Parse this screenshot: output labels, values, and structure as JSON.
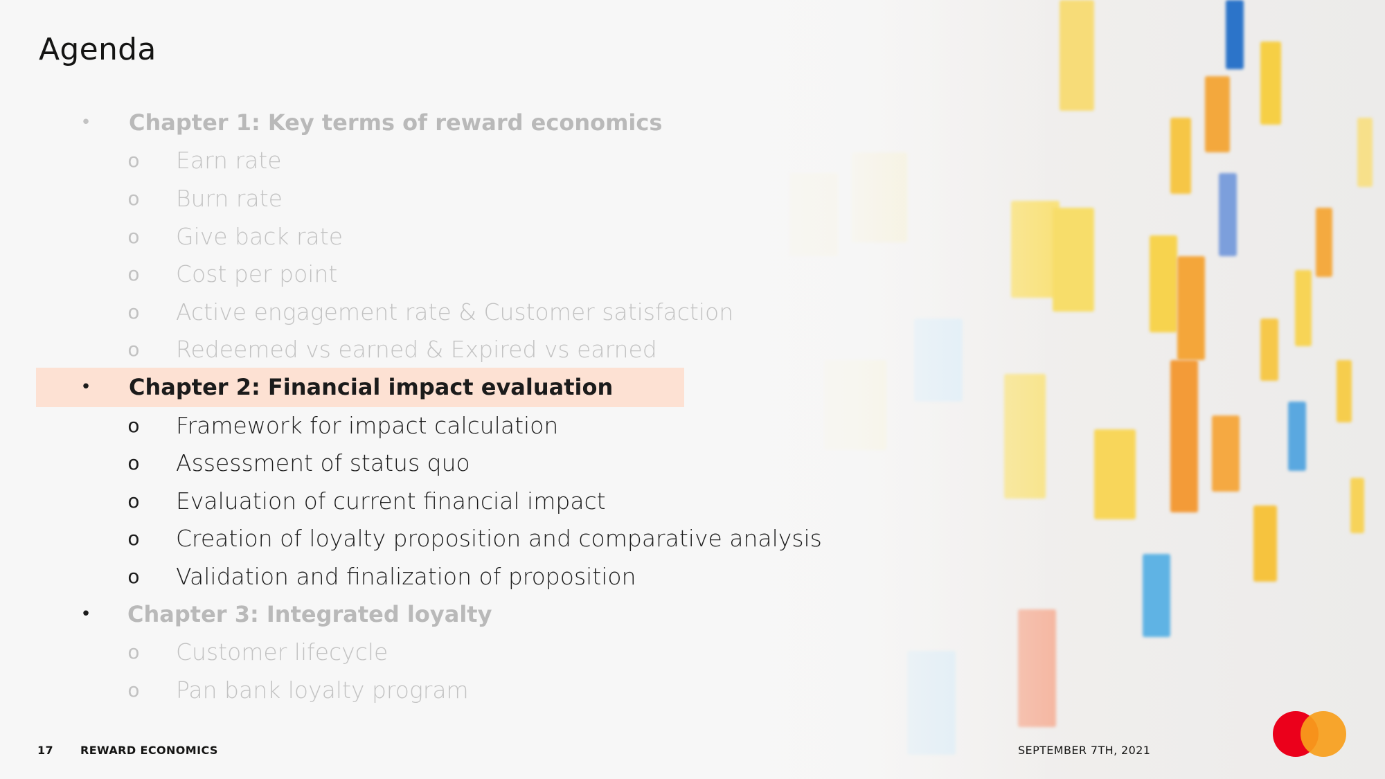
{
  "slide": {
    "title": "Agenda"
  },
  "agenda": {
    "chapter1": {
      "label": "Chapter 1: Key terms of reward economics",
      "items": [
        "Earn rate",
        "Burn rate",
        "Give back rate",
        "Cost per point",
        "Active engagement rate & Customer satisfaction",
        "Redeemed vs earned & Expired vs earned"
      ]
    },
    "chapter2": {
      "label": "Chapter 2: Financial impact evaluation",
      "items": [
        "Framework for impact calculation",
        "Assessment of status quo",
        "Evaluation of current financial impact",
        "Creation of loyalty proposition and comparative analysis",
        "Validation and finalization of proposition"
      ]
    },
    "chapter3": {
      "label": "Chapter 3: Integrated loyalty",
      "items": [
        "Customer lifecycle",
        "Pan bank loyalty program"
      ]
    },
    "chapter_bullet": "•",
    "sub_bullet": "o"
  },
  "footer": {
    "page_number": "17",
    "section": "REWARD ECONOMICS",
    "date": "SEPTEMBER 7TH, 2021"
  },
  "colors": {
    "highlight": "#fde1d3",
    "logo_red": "#eb001b",
    "logo_orange": "#f79e1b"
  }
}
